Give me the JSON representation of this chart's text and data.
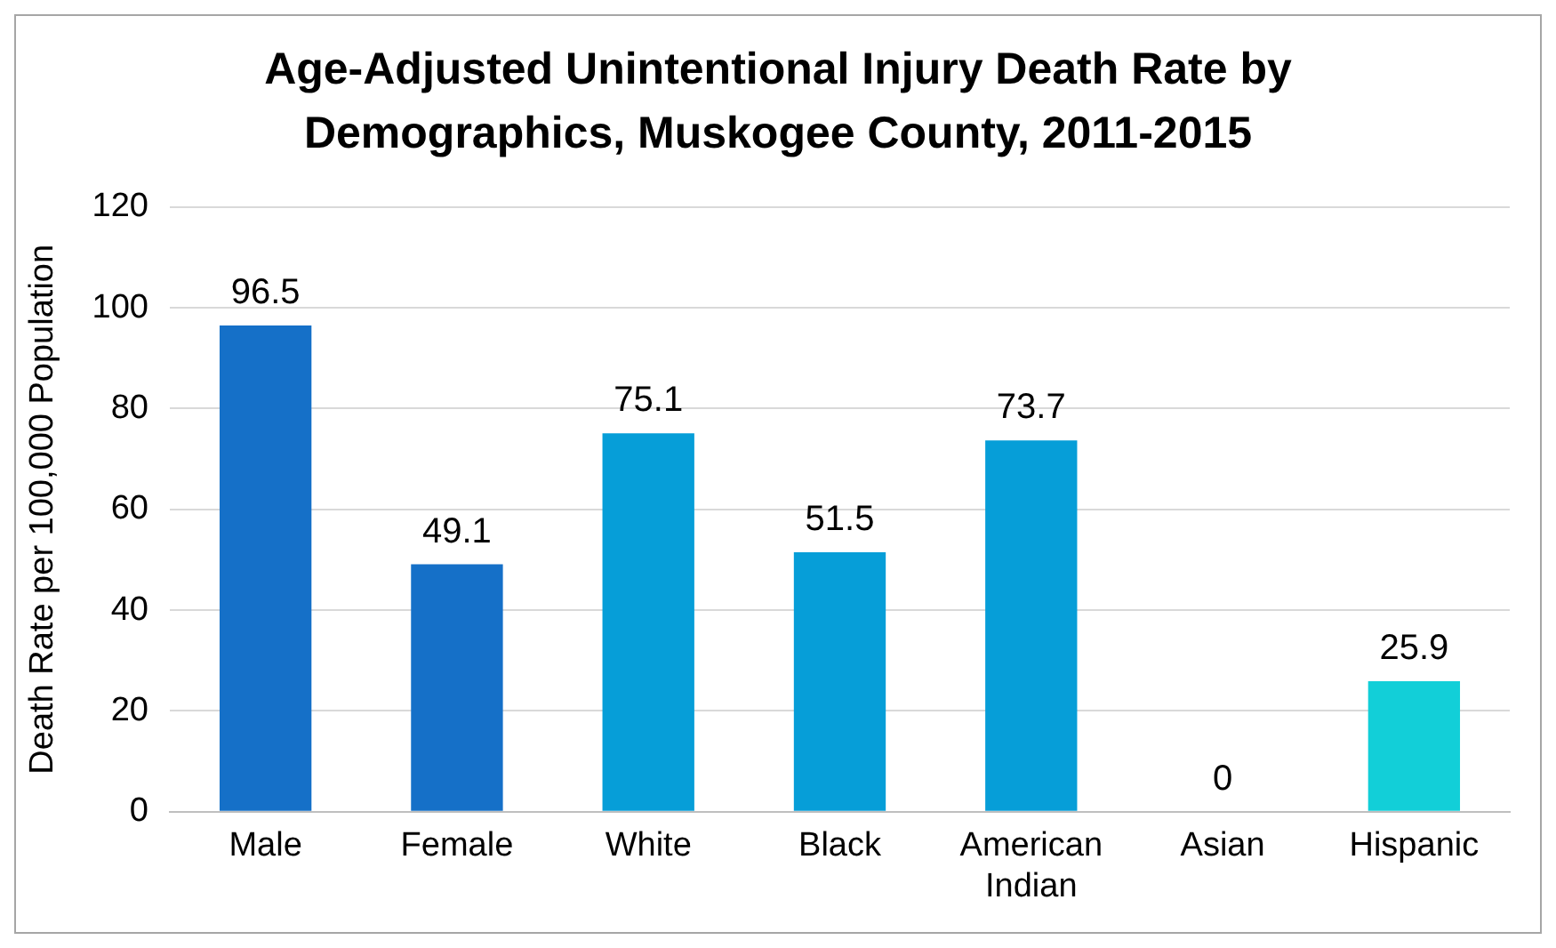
{
  "chart_data": {
    "type": "bar",
    "title": "Age-Adjusted Unintentional Injury Death Rate by Demographics, Muskogee County, 2011-2015",
    "ylabel": "Death Rate per 100,000 Population",
    "categories": [
      "Male",
      "Female",
      "White",
      "Black",
      "American Indian",
      "Asian",
      "Hispanic"
    ],
    "values": [
      96.5,
      49.1,
      75.1,
      51.5,
      73.7,
      0,
      25.9
    ],
    "colors": [
      "#1570c8",
      "#1570c8",
      "#069ed8",
      "#069ed8",
      "#069ed8",
      "#069ed8",
      "#12cfd8"
    ],
    "ylim": [
      0,
      120
    ],
    "yticks": [
      0,
      20,
      40,
      60,
      80,
      100,
      120
    ],
    "grid": "y",
    "legend": false,
    "data_labels": true
  }
}
